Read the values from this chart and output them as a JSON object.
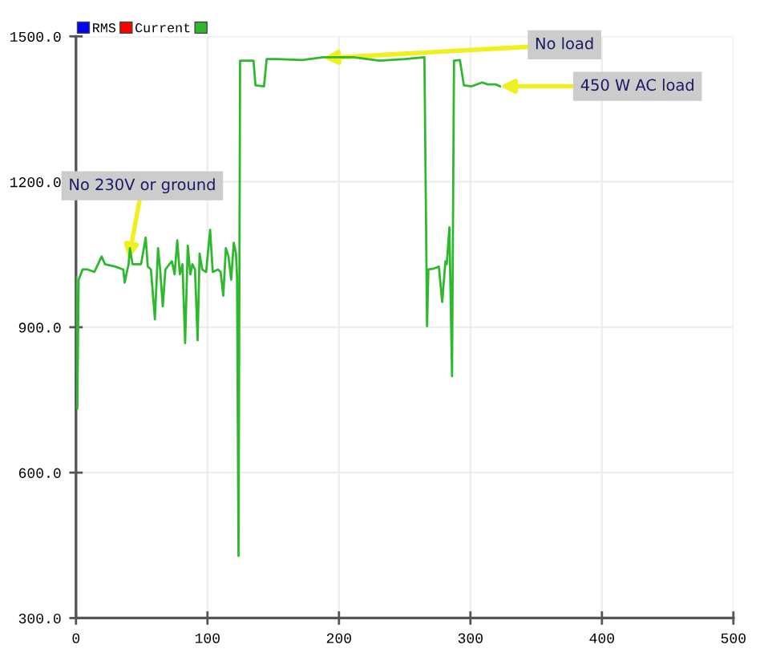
{
  "chart_data": {
    "type": "line",
    "series": [
      {
        "name": "RMS",
        "color": "#0000ff",
        "values": [
          null,
          null
        ]
      },
      {
        "name": "Current",
        "color": "#ff0000",
        "values": [
          null,
          null
        ]
      },
      {
        "color": "#2eb82e",
        "x": [
          0,
          1,
          2,
          5,
          9,
          14,
          19.5,
          22,
          30,
          36,
          37,
          40,
          41,
          43,
          49.5,
          53,
          54.6,
          57,
          60,
          62.4,
          64,
          66,
          68,
          71,
          73,
          75,
          77,
          79,
          81,
          83,
          85,
          87,
          88.5,
          90.5,
          92.5,
          94,
          96,
          99,
          102,
          104,
          108,
          110,
          112,
          114,
          116,
          118,
          120,
          121.7,
          122.5,
          123.6,
          124.8,
          135,
          136.5,
          143,
          145,
          153,
          172,
          188,
          211,
          231,
          250,
          265,
          267,
          268,
          272,
          276,
          278.5,
          281,
          282,
          284,
          286,
          287.5,
          292,
          295,
          301,
          309,
          313,
          319,
          322.5
        ],
        "values": [
          1003,
          732,
          998,
          1019,
          1019,
          1014,
          1046,
          1030,
          1025,
          1019,
          992,
          1030,
          1063,
          1030,
          1030,
          1085,
          1025,
          1019,
          916,
          1063,
          1019,
          943,
          1019,
          1030,
          1036,
          1009,
          1079,
          1009,
          1030,
          867,
          1068,
          1009,
          1030,
          1019,
          873,
          1052,
          1019,
          1014,
          1101,
          1014,
          1019,
          1014,
          965,
          1063,
          1046,
          998,
          1074,
          1052,
          1003,
          428,
          1450,
          1450,
          1399,
          1397,
          1453,
          1453,
          1451,
          1457,
          1457,
          1450,
          1453,
          1457,
          902,
          1019,
          1021,
          1025,
          952,
          1036,
          1030,
          1106,
          799,
          1450,
          1451,
          1399,
          1397,
          1405,
          1401,
          1401,
          1397
        ]
      }
    ],
    "xlim": [
      0,
      500
    ],
    "xticks": [
      0,
      100,
      200,
      300,
      400,
      500
    ],
    "ylim": [
      300,
      1500
    ],
    "yticks": [
      {
        "value": 300,
        "label": "300.0"
      },
      {
        "value": 600,
        "label": "600.0"
      },
      {
        "value": 900,
        "label": "900.0"
      },
      {
        "value": 1200,
        "label": "1200.0"
      },
      {
        "value": 1500,
        "label": "1500.0"
      }
    ],
    "grid": true,
    "legend": "top left",
    "marker": "none",
    "line_style": "solid",
    "annotations": [
      {
        "text": "No load",
        "x": 188,
        "y": 1455
      },
      {
        "text": "450 W AC load",
        "x": 322.5,
        "y": 1397
      },
      {
        "text": "No 230V or ground",
        "x": 40,
        "y": 1040
      }
    ]
  }
}
